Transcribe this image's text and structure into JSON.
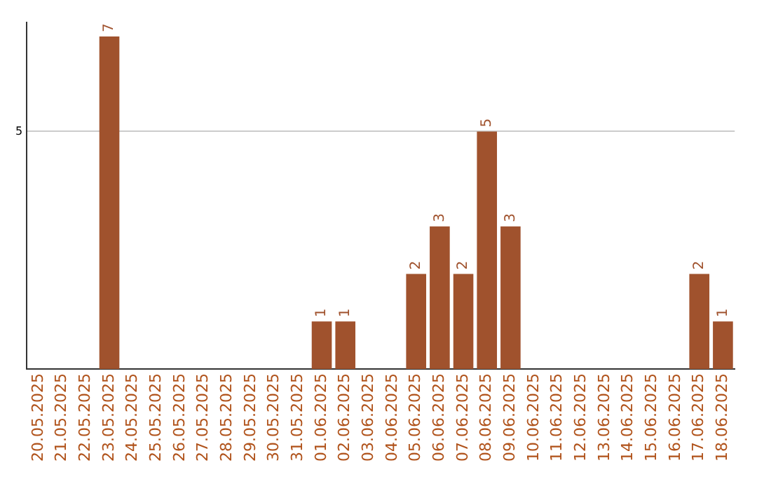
{
  "chart_data": {
    "type": "bar",
    "categories": [
      "20.05.2025",
      "21.05.2025",
      "22.05.2025",
      "23.05.2025",
      "24.05.2025",
      "25.05.2025",
      "26.05.2025",
      "27.05.2025",
      "28.05.2025",
      "29.05.2025",
      "30.05.2025",
      "31.05.2025",
      "01.06.2025",
      "02.06.2025",
      "03.06.2025",
      "04.06.2025",
      "05.06.2025",
      "06.06.2025",
      "07.06.2025",
      "08.06.2025",
      "09.06.2025",
      "10.06.2025",
      "11.06.2025",
      "12.06.2025",
      "13.06.2025",
      "14.06.2025",
      "15.06.2025",
      "16.06.2025",
      "17.06.2025",
      "18.06.2025"
    ],
    "values": [
      0,
      0,
      0,
      7,
      0,
      0,
      0,
      0,
      0,
      0,
      0,
      0,
      1,
      1,
      0,
      0,
      2,
      3,
      2,
      5,
      3,
      0,
      0,
      0,
      0,
      0,
      0,
      0,
      2,
      1
    ],
    "value_labels": [
      null,
      null,
      null,
      "7",
      null,
      null,
      null,
      null,
      null,
      null,
      null,
      null,
      "1",
      "1",
      null,
      null,
      "2",
      "3",
      "2",
      "5",
      "3",
      null,
      null,
      null,
      null,
      null,
      null,
      null,
      "2",
      "1"
    ],
    "color": "#a0522d",
    "ylim": [
      0,
      7.3
    ],
    "yticks": [
      5
    ],
    "grid": "y",
    "legend": false
  }
}
